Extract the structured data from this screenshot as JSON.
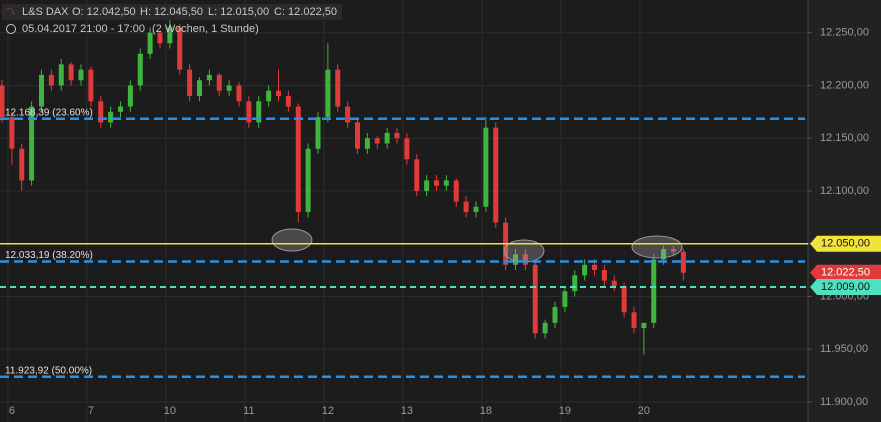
{
  "header": {
    "symbol": "L&S DAX",
    "open": "O: 12.042,50",
    "high": "H: 12.045,50",
    "low": "L: 12.015,00",
    "close": "C: 12.022,50",
    "period": "05.04.2017 21:00 - 17:00",
    "range": "(2 Wochen, 1 Stunde)"
  },
  "chart_data": {
    "type": "candlestick",
    "categories": [
      null,
      "6",
      null,
      null,
      null,
      null,
      null,
      null,
      null,
      "7",
      null,
      null,
      null,
      null,
      null,
      null,
      null,
      "10",
      null,
      null,
      null,
      null,
      null,
      null,
      null,
      "11",
      null,
      null,
      null,
      null,
      null,
      null,
      null,
      "12",
      null,
      null,
      null,
      null,
      null,
      null,
      null,
      "13",
      null,
      null,
      null,
      null,
      null,
      null,
      null,
      "18",
      null,
      null,
      null,
      null,
      null,
      null,
      null,
      "19",
      null,
      null,
      null,
      null,
      null,
      null,
      null,
      "20",
      null,
      null,
      null,
      null
    ],
    "open": [
      12200,
      12170,
      12140,
      12110,
      12180,
      12210,
      12200,
      12220,
      12205,
      12215,
      12185,
      12165,
      12175,
      12180,
      12200,
      12230,
      12250,
      12240,
      12255,
      12215,
      12190,
      12205,
      12210,
      12195,
      12200,
      12185,
      12165,
      12185,
      12195,
      12190,
      12180,
      12080,
      12140,
      12170,
      12215,
      12180,
      12165,
      12140,
      12150,
      12145,
      12155,
      12150,
      12130,
      12100,
      12110,
      12105,
      12110,
      12090,
      12080,
      12085,
      12160,
      12070,
      12030,
      12040,
      12030,
      11965,
      11975,
      11990,
      12005,
      12020,
      12030,
      12025,
      12015,
      12010,
      11985,
      11970,
      11975,
      12035,
      12045,
      12042.5
    ],
    "high": [
      12205,
      12175,
      12145,
      12185,
      12215,
      12215,
      12225,
      12222,
      12220,
      12218,
      12190,
      12180,
      12185,
      12205,
      12235,
      12255,
      12252,
      12262,
      12258,
      12220,
      12208,
      12215,
      12212,
      12205,
      12203,
      12190,
      12190,
      12200,
      12215,
      12195,
      12183,
      12145,
      12175,
      12240,
      12220,
      12185,
      12168,
      12155,
      12152,
      12160,
      12160,
      12155,
      12135,
      12115,
      12115,
      12115,
      12112,
      12095,
      12090,
      12170,
      12165,
      12075,
      12045,
      12045,
      12035,
      11978,
      11995,
      12008,
      12025,
      12035,
      12035,
      12030,
      12020,
      12013,
      11990,
      11975,
      12040,
      12048,
      12048,
      12045.5
    ],
    "low": [
      12165,
      12125,
      12100,
      12105,
      12175,
      12195,
      12195,
      12200,
      12200,
      12180,
      12160,
      12160,
      12170,
      12175,
      12195,
      12225,
      12235,
      12235,
      12210,
      12185,
      12185,
      12200,
      12190,
      12190,
      12180,
      12160,
      12160,
      12180,
      12185,
      12175,
      12070,
      12075,
      12135,
      12165,
      12175,
      12160,
      12135,
      12135,
      12140,
      12140,
      12145,
      12125,
      12095,
      12095,
      12100,
      12100,
      12085,
      12075,
      12075,
      12080,
      12065,
      12025,
      12025,
      12025,
      11960,
      11960,
      11970,
      11985,
      12000,
      12015,
      12020,
      12010,
      12005,
      11980,
      11965,
      11945,
      11970,
      12030,
      12038,
      12015
    ],
    "close": [
      12170,
      12140,
      12110,
      12180,
      12210,
      12200,
      12220,
      12205,
      12215,
      12185,
      12165,
      12175,
      12180,
      12200,
      12230,
      12250,
      12240,
      12255,
      12215,
      12190,
      12205,
      12210,
      12195,
      12200,
      12185,
      12165,
      12185,
      12195,
      12190,
      12180,
      12080,
      12140,
      12170,
      12215,
      12180,
      12165,
      12140,
      12150,
      12145,
      12155,
      12150,
      12130,
      12100,
      12110,
      12105,
      12110,
      12090,
      12080,
      12085,
      12160,
      12070,
      12030,
      12040,
      12030,
      11965,
      11975,
      11990,
      12005,
      12020,
      12030,
      12025,
      12015,
      12010,
      11985,
      11970,
      11975,
      12035,
      12045,
      12042.5,
      12022.5
    ],
    "up_color": "#3fb53f",
    "down_color": "#e03a3a",
    "ylim": [
      11881,
      12281
    ],
    "yticks": [
      {
        "value": 12250,
        "label": "12.250,00"
      },
      {
        "value": 12200,
        "label": "12.200,00"
      },
      {
        "value": 12150,
        "label": "12.150,00"
      },
      {
        "value": 12100,
        "label": "12.100,00"
      },
      {
        "value": 12050,
        "label": "12.050,00"
      },
      {
        "value": 12000,
        "label": "12.000,00"
      },
      {
        "value": 11950,
        "label": "11.950,00"
      },
      {
        "value": 11900,
        "label": "11.900,00"
      }
    ],
    "grid": true,
    "levels": [
      {
        "value": 12168.39,
        "label": "12.168,39 (23.60%)",
        "color": "#2a8fe8"
      },
      {
        "value": 12033.19,
        "label": "12.033,19 (38.20%)",
        "color": "#2a8fe8"
      },
      {
        "value": 11923.92,
        "label": "11.923,92 (50.00%)",
        "color": "#2a8fe8"
      }
    ],
    "markers": [
      {
        "value": 12050,
        "label": "12.050,00",
        "color": "#f2e33a",
        "line": "solid"
      },
      {
        "value": 12022.5,
        "label": "12.022,50",
        "color": "#e03a3a",
        "line": "none"
      },
      {
        "value": 12009,
        "label": "12.009,00",
        "color": "#4fe0c0",
        "line": "dashed"
      }
    ]
  }
}
